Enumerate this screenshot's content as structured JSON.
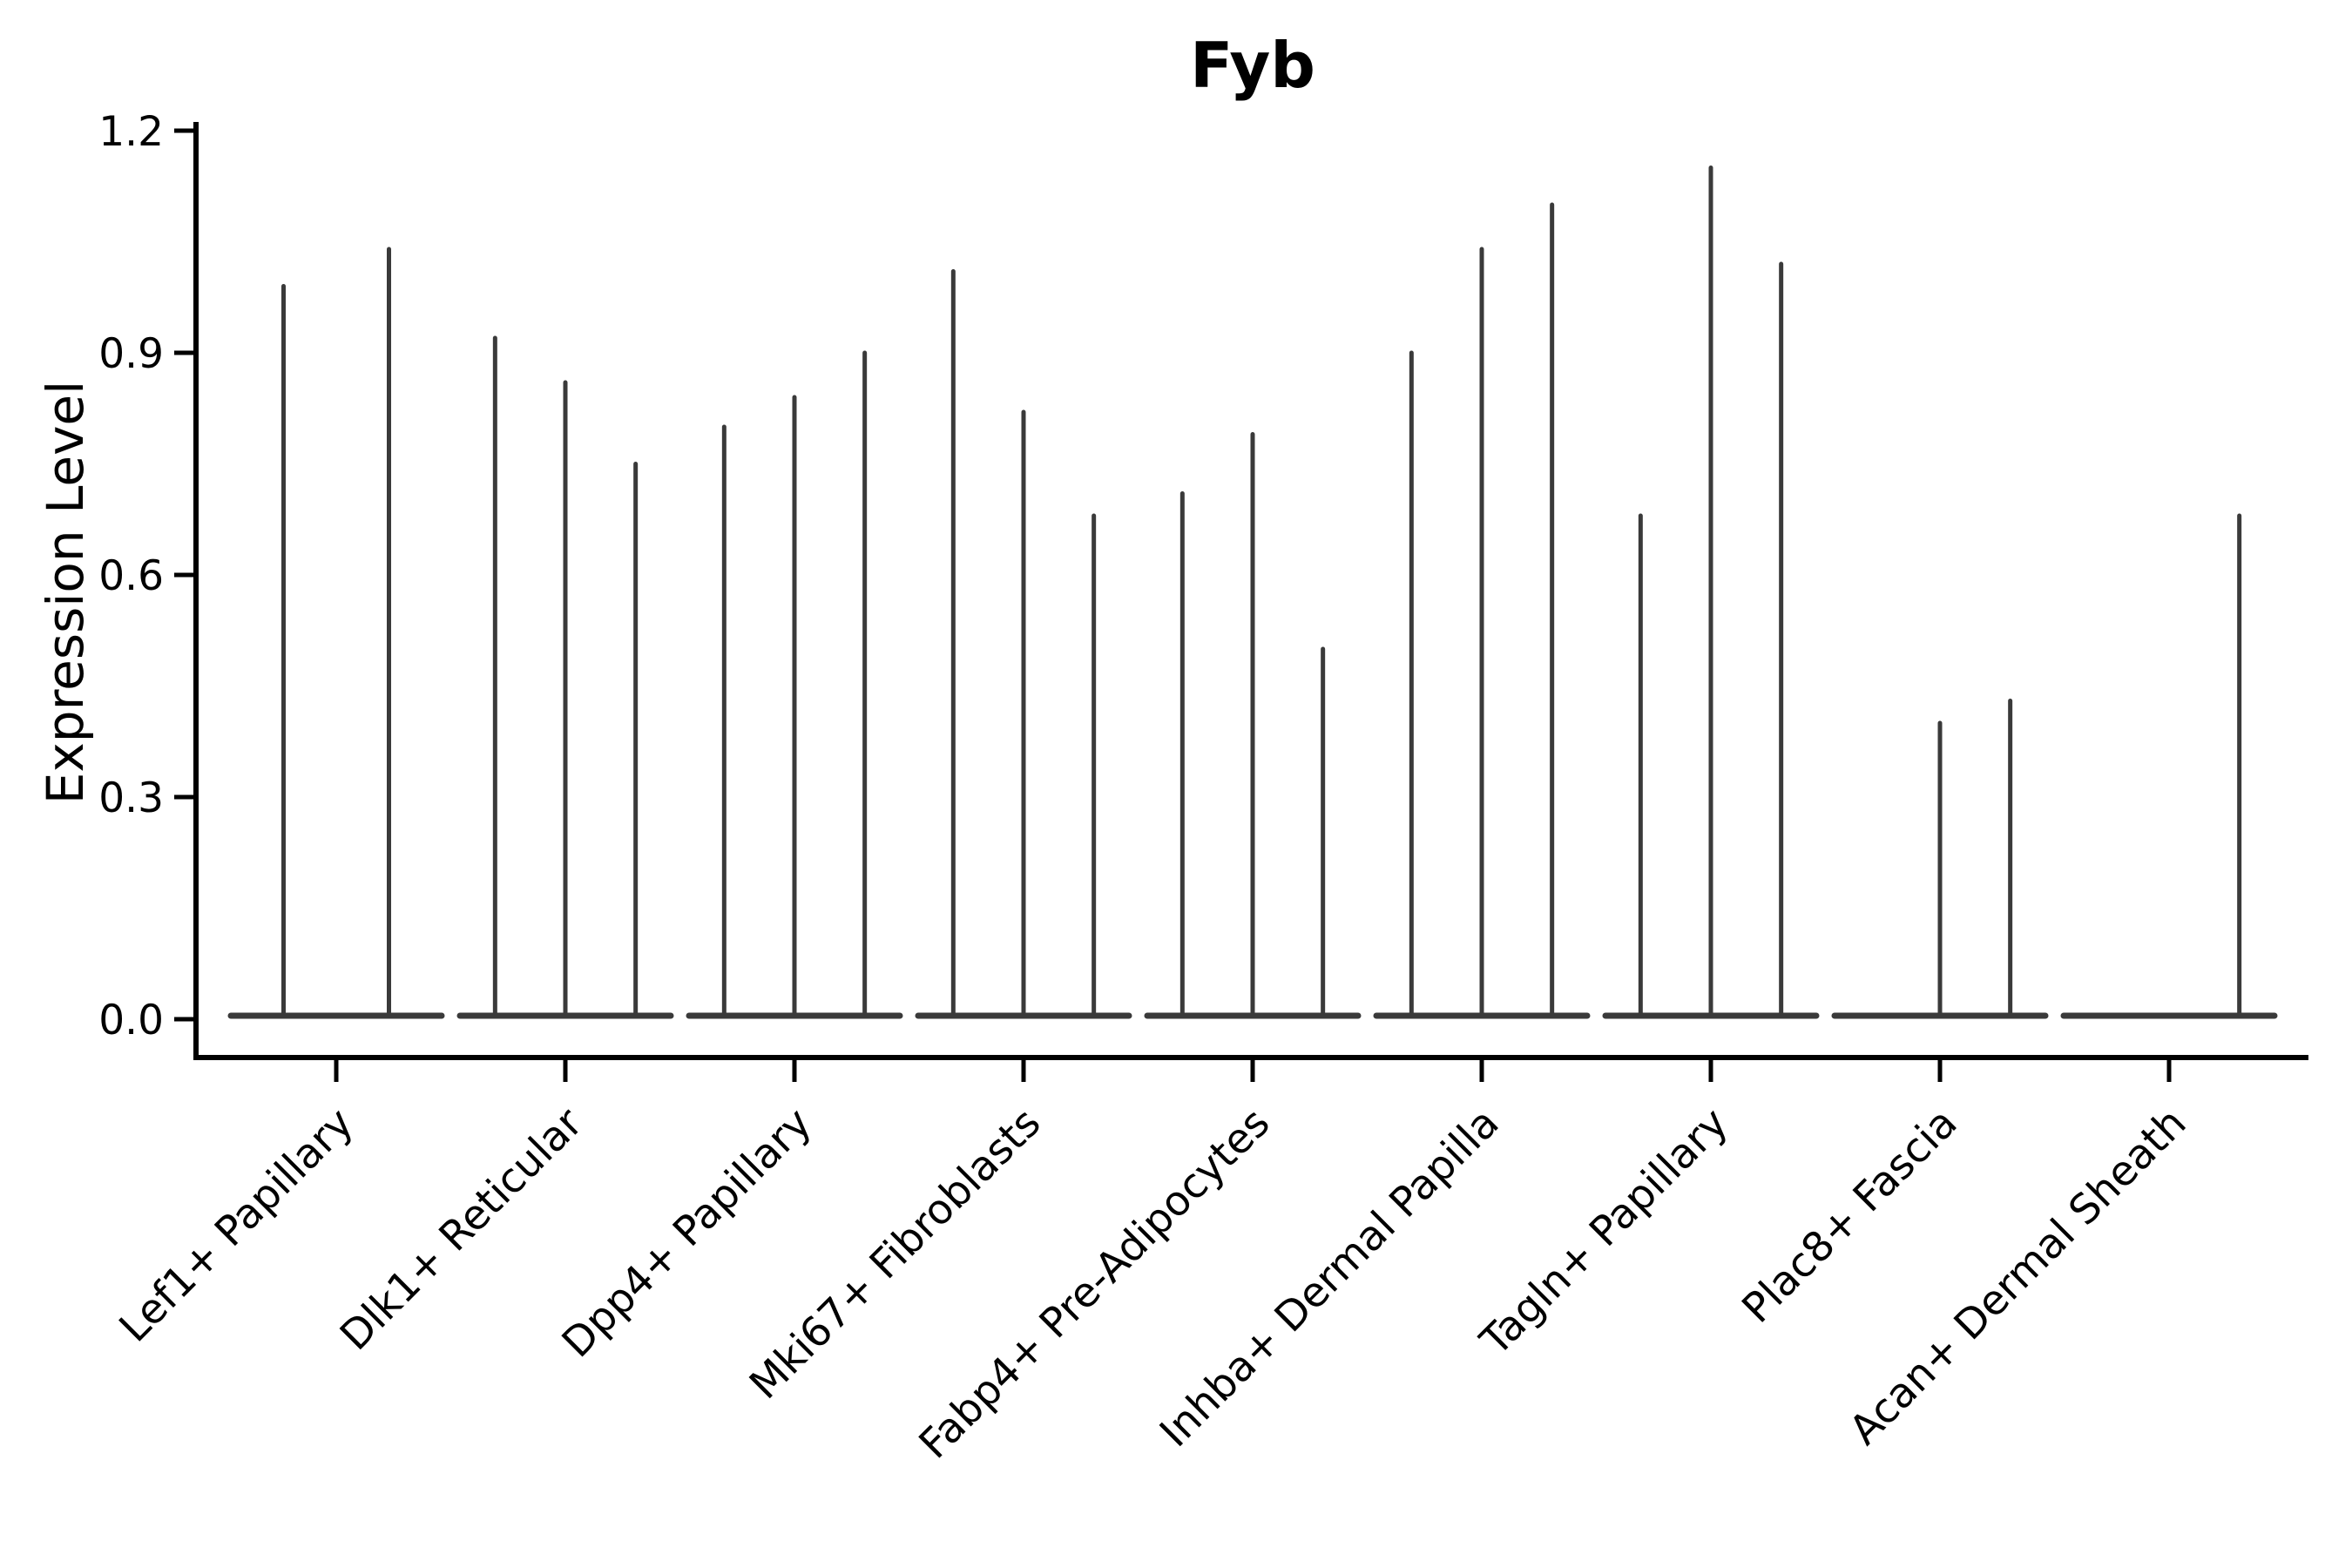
{
  "title": "Fyb",
  "axes": {
    "ylabel": "Expression Level",
    "ytick_labels": [
      "0.0",
      "0.3",
      "0.6",
      "0.9",
      "1.2"
    ]
  },
  "colors": {
    "axis": "#000000",
    "violin": "#3a3a3a",
    "background": "#ffffff"
  },
  "chart_data": {
    "type": "violin",
    "title": "Fyb",
    "xlabel": "",
    "ylabel": "Expression Level",
    "ylim": [
      0,
      1.2
    ],
    "yticks": [
      0,
      0.3,
      0.6,
      0.9,
      1.2
    ],
    "grid": false,
    "legend": "none",
    "categories": [
      "Lef1+ Papillary",
      "Dlk1+ Reticular",
      "Dpp4+ Papillary",
      "Mki67+ Fibroblasts",
      "Fabp4+ Pre-Adipocytes",
      "Inhba+ Dermal Papilla",
      "Tagln+ Papillary",
      "Plac8+ Fascia",
      "Acan+ Dermal Sheath"
    ],
    "series": [
      {
        "name": "Lef1+ Papillary",
        "violin_peaks": [
          0.99,
          1.04
        ]
      },
      {
        "name": "Dlk1+ Reticular",
        "violin_peaks": [
          0.92,
          0.86,
          0.75
        ]
      },
      {
        "name": "Dpp4+ Papillary",
        "violin_peaks": [
          0.8,
          0.84,
          0.9
        ]
      },
      {
        "name": "Mki67+ Fibroblasts",
        "violin_peaks": [
          1.01,
          0.82,
          0.68
        ]
      },
      {
        "name": "Fabp4+ Pre-Adipocytes",
        "violin_peaks": [
          0.71,
          0.79,
          0.5
        ]
      },
      {
        "name": "Inhba+ Dermal Papilla",
        "violin_peaks": [
          0.9,
          1.04,
          1.1
        ]
      },
      {
        "name": "Tagln+ Papillary",
        "violin_peaks": [
          0.68,
          1.15,
          1.02
        ]
      },
      {
        "name": "Plac8+ Fascia",
        "violin_peaks": [
          null,
          0.4,
          0.43
        ]
      },
      {
        "name": "Acan+ Dermal Sheath",
        "violin_peaks": [
          null,
          null,
          0.68
        ]
      }
    ],
    "notes": "Split violin plot; every violin is collapsed flat at 0 with a thin spike reaching its maximum expression value. null = violin present but fully flat (no spike)."
  }
}
